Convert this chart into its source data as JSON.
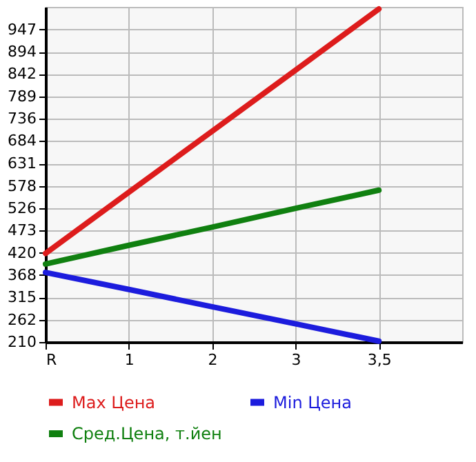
{
  "chart_data": {
    "type": "line",
    "categories": [
      "R",
      "1",
      "2",
      "3",
      "3,5"
    ],
    "series": [
      {
        "name": "Max Цена",
        "color": "#dd1c1c",
        "values": [
          419,
          563,
          707,
          851,
          995
        ]
      },
      {
        "name": "Min Цена",
        "color": "#1c1cdd",
        "values": [
          374,
          334,
          293,
          253,
          212
        ]
      },
      {
        "name": "Сред.Цена, т.йен",
        "color": "#108010",
        "values": [
          394,
          438,
          481,
          525,
          568
        ]
      }
    ],
    "ylim": [
      210,
      1000
    ],
    "yticks": [
      210,
      262,
      315,
      368,
      420,
      473,
      526,
      578,
      631,
      684,
      736,
      789,
      842,
      894,
      947
    ],
    "grid": true,
    "legend": "bottom",
    "marker": "none",
    "line_style": "solid"
  }
}
